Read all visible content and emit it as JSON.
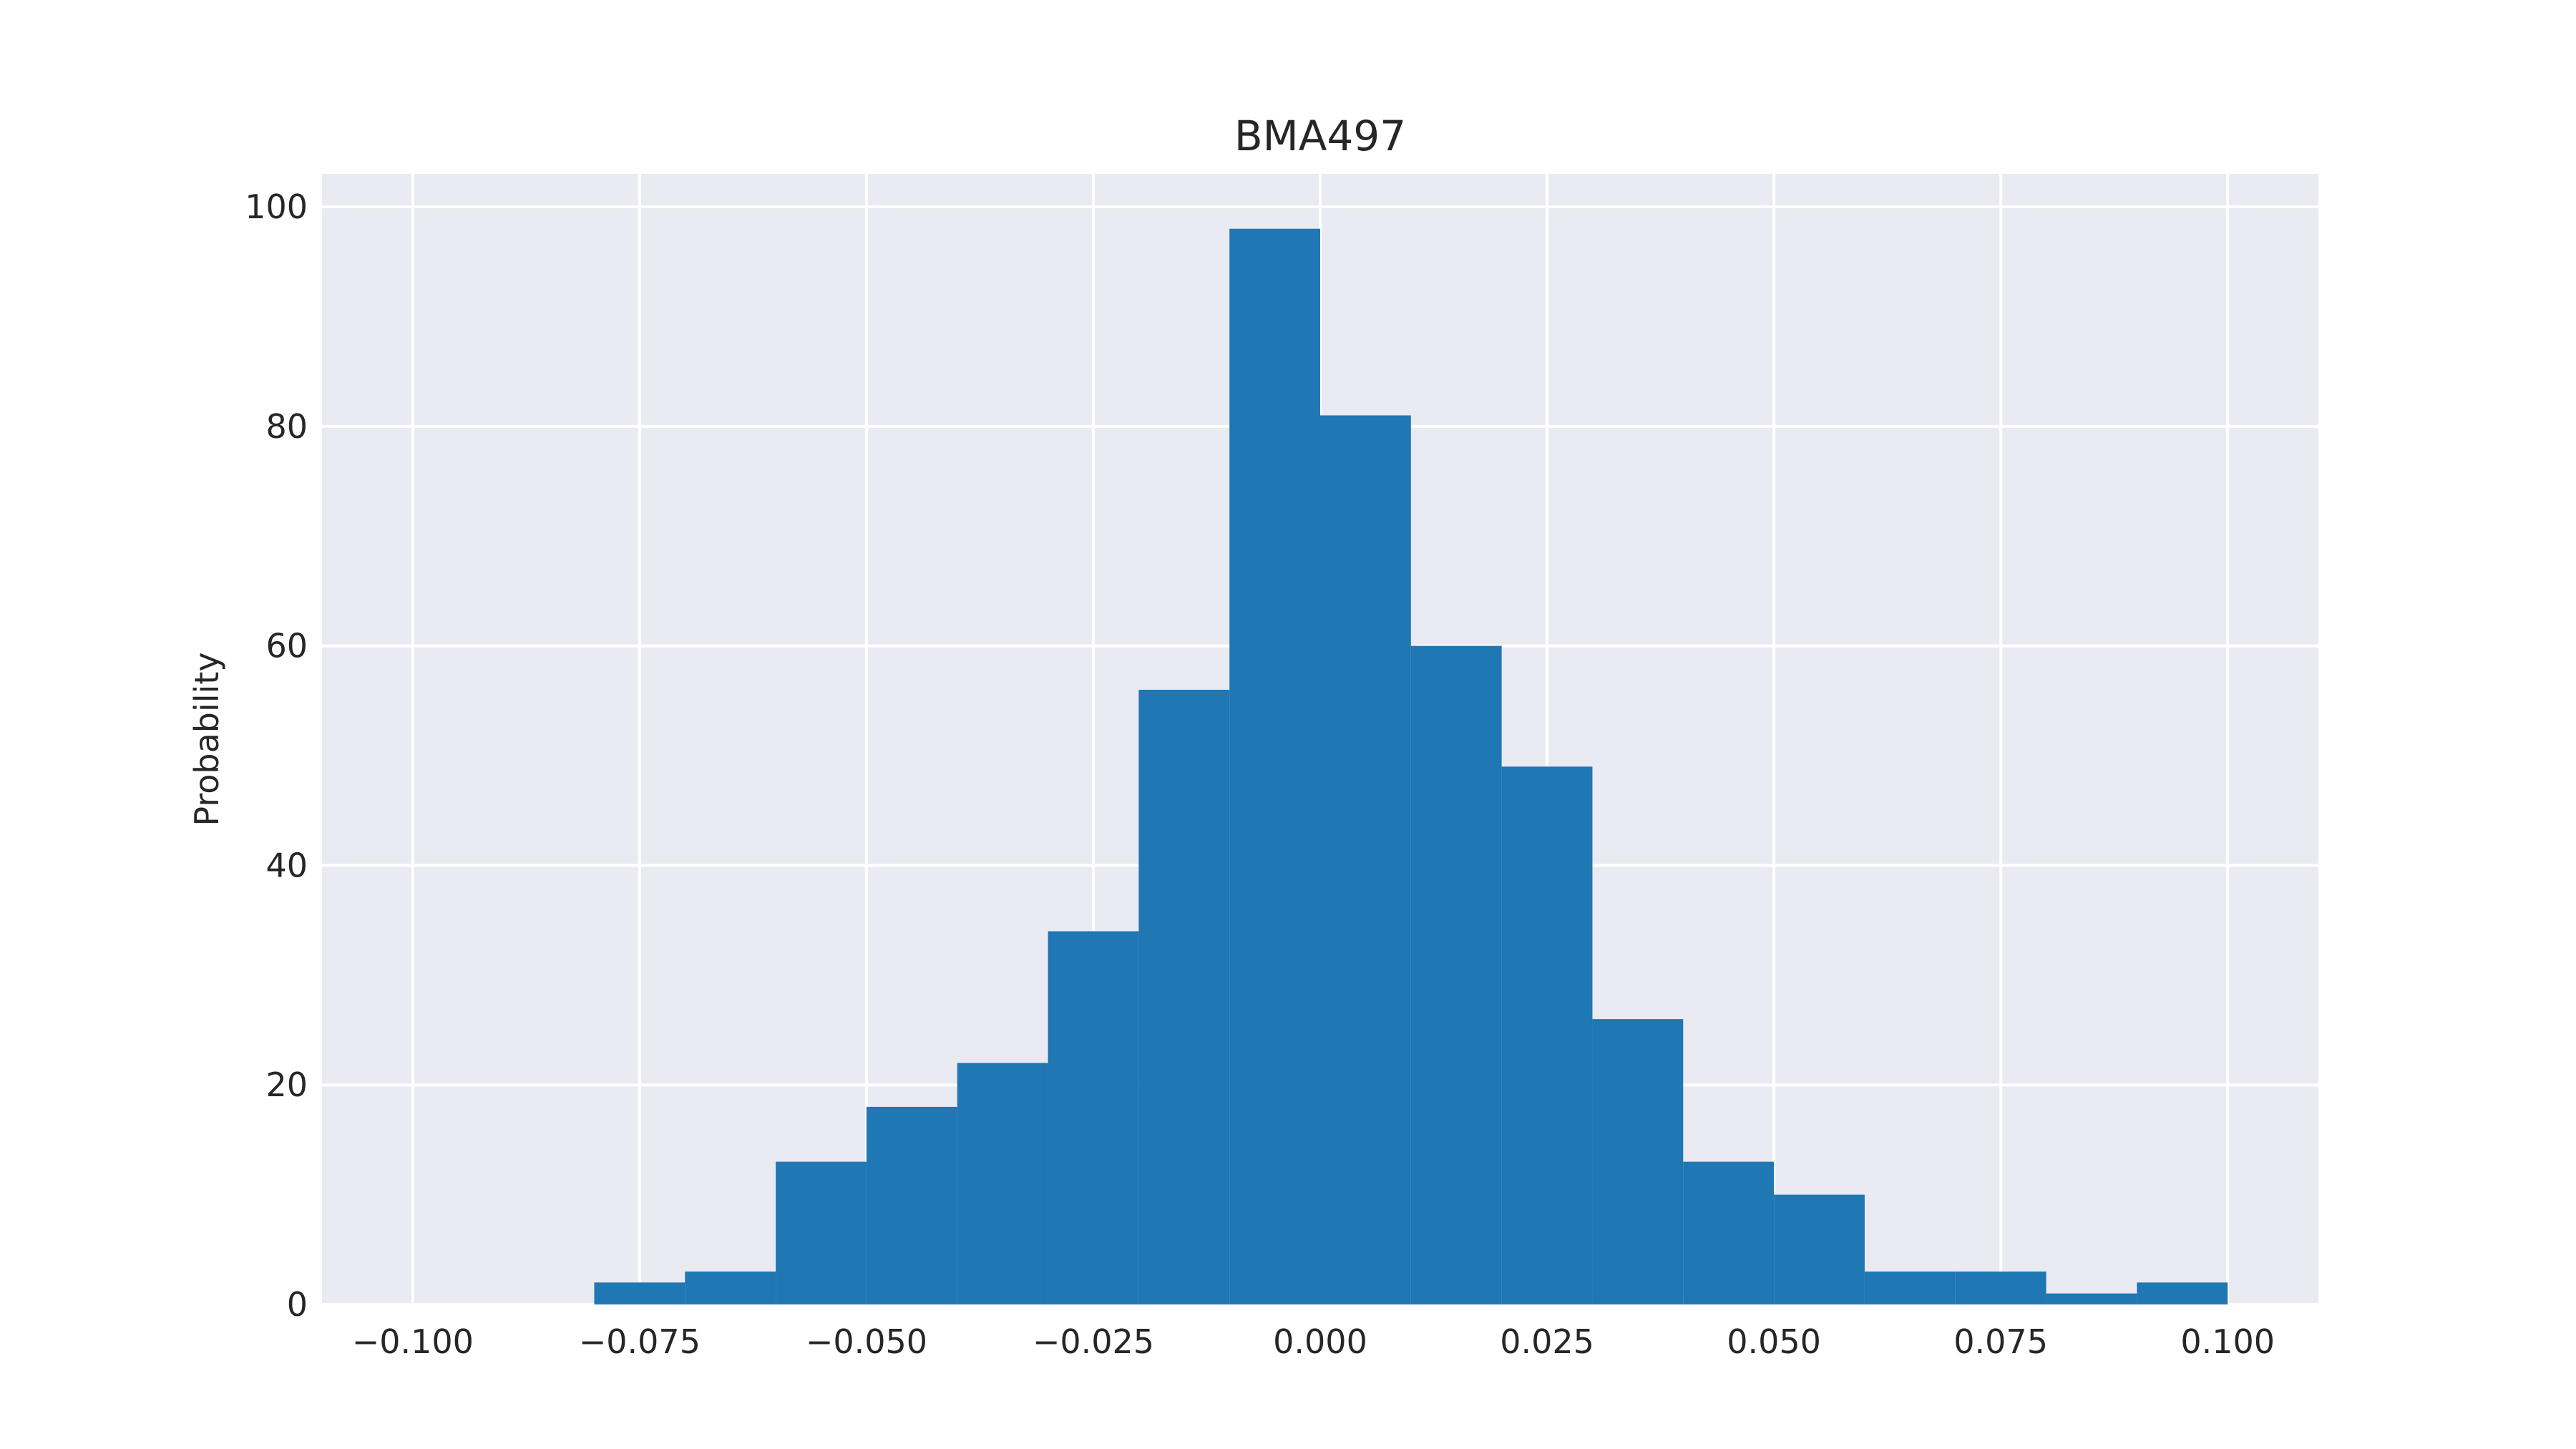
{
  "chart_data": {
    "type": "bar",
    "title": "BMA497",
    "xlabel": "",
    "ylabel": "Probability",
    "xlim": [
      -0.11,
      0.11
    ],
    "ylim": [
      0,
      103
    ],
    "grid": true,
    "bar_color": "#1f77b4",
    "background_color": "#eaeaf2",
    "grid_color": "#ffffff",
    "bins": [
      {
        "x0": -0.08,
        "x1": -0.07,
        "value": 2
      },
      {
        "x0": -0.07,
        "x1": -0.06,
        "value": 3
      },
      {
        "x0": -0.06,
        "x1": -0.05,
        "value": 13
      },
      {
        "x0": -0.05,
        "x1": -0.04,
        "value": 18
      },
      {
        "x0": -0.04,
        "x1": -0.03,
        "value": 22
      },
      {
        "x0": -0.03,
        "x1": -0.02,
        "value": 34
      },
      {
        "x0": -0.02,
        "x1": -0.01,
        "value": 56
      },
      {
        "x0": -0.01,
        "x1": 0.0,
        "value": 98
      },
      {
        "x0": 0.0,
        "x1": 0.01,
        "value": 81
      },
      {
        "x0": 0.01,
        "x1": 0.02,
        "value": 60
      },
      {
        "x0": 0.02,
        "x1": 0.03,
        "value": 49
      },
      {
        "x0": 0.03,
        "x1": 0.04,
        "value": 26
      },
      {
        "x0": 0.04,
        "x1": 0.05,
        "value": 13
      },
      {
        "x0": 0.05,
        "x1": 0.06,
        "value": 10
      },
      {
        "x0": 0.06,
        "x1": 0.07,
        "value": 3
      },
      {
        "x0": 0.07,
        "x1": 0.08,
        "value": 3
      },
      {
        "x0": 0.08,
        "x1": 0.09,
        "value": 1
      },
      {
        "x0": 0.09,
        "x1": 0.1,
        "value": 2
      }
    ],
    "x_ticks": [
      {
        "value": -0.1,
        "label": "−0.100"
      },
      {
        "value": -0.075,
        "label": "−0.075"
      },
      {
        "value": -0.05,
        "label": "−0.050"
      },
      {
        "value": -0.025,
        "label": "−0.025"
      },
      {
        "value": 0.0,
        "label": "0.000"
      },
      {
        "value": 0.025,
        "label": "0.025"
      },
      {
        "value": 0.05,
        "label": "0.050"
      },
      {
        "value": 0.075,
        "label": "0.075"
      },
      {
        "value": 0.1,
        "label": "0.100"
      }
    ],
    "y_ticks": [
      {
        "value": 0,
        "label": "0"
      },
      {
        "value": 20,
        "label": "20"
      },
      {
        "value": 40,
        "label": "40"
      },
      {
        "value": 60,
        "label": "60"
      },
      {
        "value": 80,
        "label": "80"
      },
      {
        "value": 100,
        "label": "100"
      }
    ]
  }
}
